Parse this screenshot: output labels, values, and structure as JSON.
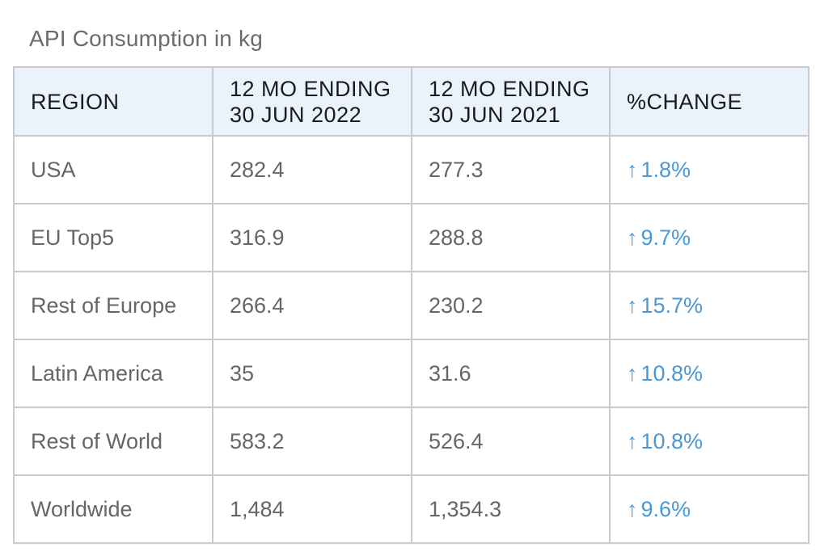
{
  "title": "API Consumption in kg",
  "table": {
    "headers": {
      "region": "REGION",
      "col2_line1": "12 MO ENDING",
      "col2_line2": "30 JUN 2022",
      "col3_line1": "12 MO ENDING",
      "col3_line2": "30 JUN 2021",
      "change": "%CHANGE"
    },
    "arrow_icon": "arrow-up-icon",
    "change_color": "#4a98d6",
    "rows": [
      {
        "region": "USA",
        "y2022": "282.4",
        "y2021": "277.3",
        "change": "1.8%"
      },
      {
        "region": "EU Top5",
        "y2022": "316.9",
        "y2021": "288.8",
        "change": "9.7%"
      },
      {
        "region": "Rest of Europe",
        "y2022": "266.4",
        "y2021": "230.2",
        "change": "15.7%"
      },
      {
        "region": "Latin America",
        "y2022": "35",
        "y2021": "31.6",
        "change": "10.8%"
      },
      {
        "region": "Rest of World",
        "y2022": "583.2",
        "y2021": "526.4",
        "change": "10.8%"
      },
      {
        "region": "Worldwide",
        "y2022": "1,484",
        "y2021": "1,354.3",
        "change": "9.6%"
      }
    ]
  }
}
